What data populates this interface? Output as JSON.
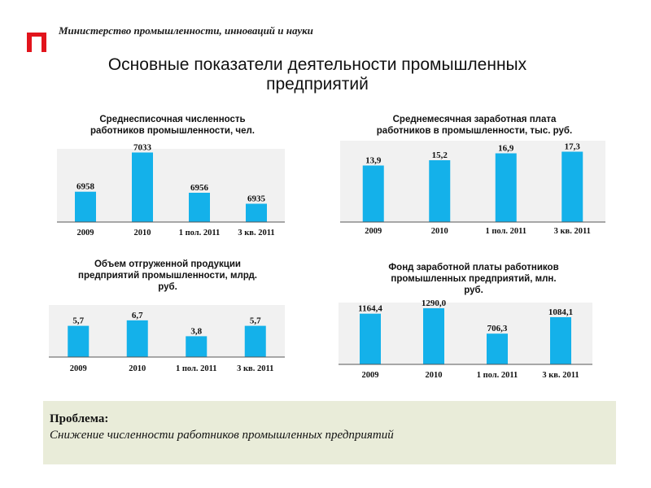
{
  "header": {
    "ministry": "Министерство промышленности, инноваций и науки",
    "title_line1": "Основные показатели деятельности промышленных",
    "title_line2": "предприятий"
  },
  "colors": {
    "bar": "#14b1ea",
    "logo": "#e2141c",
    "panel": "#e9ecd9"
  },
  "chart_data": [
    {
      "type": "bar",
      "title_line1": "Среднесписочная численность",
      "title_line2": "работников промышленности, чел.",
      "categories": [
        "2009",
        "2010",
        "1 пол. 2011",
        "3 кв. 2011"
      ],
      "values": [
        6958,
        7033,
        6956,
        6935
      ],
      "labels": [
        "6958",
        "7033",
        "6956",
        "6935"
      ],
      "ylim": [
        6900,
        7040
      ]
    },
    {
      "type": "bar",
      "title_line1": "Среднемесячная заработная плата",
      "title_line2": "работников в промышленности, тыс. руб.",
      "categories": [
        "2009",
        "2010",
        "1 пол. 2011",
        "3 кв. 2011"
      ],
      "values": [
        13.9,
        15.2,
        16.9,
        17.3
      ],
      "labels": [
        "13,9",
        "15,2",
        "16,9",
        "17,3"
      ],
      "ylim": [
        0,
        20
      ]
    },
    {
      "type": "bar",
      "title_line1": "Объем отгруженной продукции",
      "title_line2": "предприятий промышленности, млрд.",
      "title_line3": "руб.",
      "categories": [
        "2009",
        "2010",
        "1 пол. 2011",
        "3 кв. 2011"
      ],
      "values": [
        5.7,
        6.7,
        3.8,
        5.7
      ],
      "labels": [
        "5,7",
        "6,7",
        "3,8",
        "5,7"
      ],
      "ylim": [
        0,
        9.5
      ]
    },
    {
      "type": "bar",
      "title_line1": "Фонд заработной платы работников",
      "title_line2": "промышленных предприятий, млн.",
      "title_line3": "руб.",
      "categories": [
        "2009",
        "2010",
        "1 пол. 2011",
        "3 кв. 2011"
      ],
      "values": [
        1164.4,
        1290.0,
        706.3,
        1084.1
      ],
      "labels": [
        "1164,4",
        "1290,0",
        "706,3",
        "1084,1"
      ],
      "ylim": [
        0,
        1420
      ]
    }
  ],
  "problem": {
    "title": "Проблема:",
    "text": "Снижение численности работников промышленных предприятий"
  }
}
